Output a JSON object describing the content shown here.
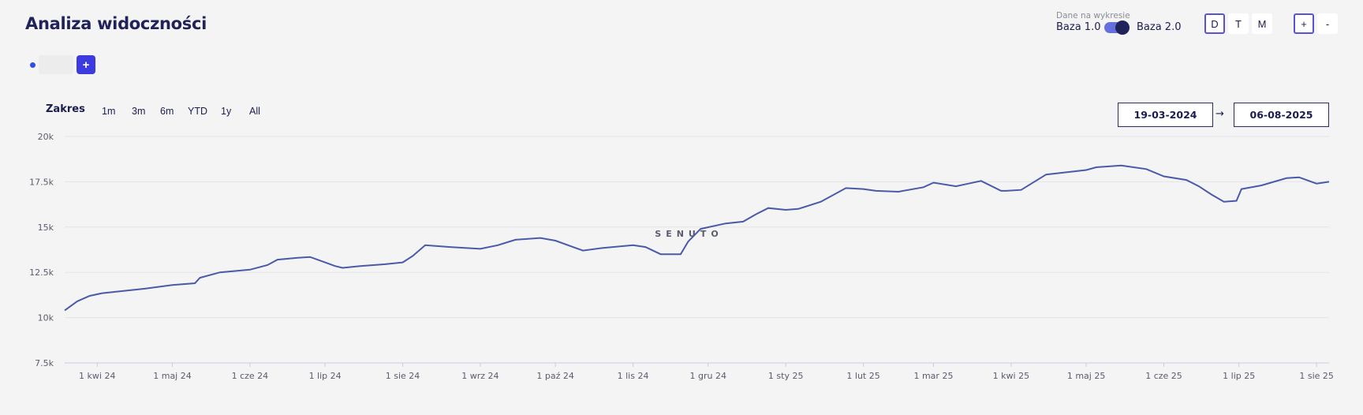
{
  "header": {
    "title": "Analiza widoczności"
  },
  "legend": {
    "dot_color": "#2f4ee6",
    "add_label": "+"
  },
  "database": {
    "caption": "Dane na wykresie",
    "left_label": "Baza 1.0",
    "right_label": "Baza 2.0",
    "toggle_on": true
  },
  "granularity": {
    "options": [
      "D",
      "T",
      "M"
    ],
    "active": "D"
  },
  "zoom": {
    "plus": "+",
    "minus": "-"
  },
  "range": {
    "label": "Zakres",
    "options": [
      "1m",
      "3m",
      "6m",
      "YTD",
      "1y",
      "All"
    ]
  },
  "dates": {
    "from": "19-03-2024",
    "arrow": "→",
    "to": "06-08-2025"
  },
  "watermark": "SENUTO",
  "chart_data": {
    "type": "line",
    "title": "",
    "xlabel": "",
    "ylabel": "",
    "ylim": [
      7500,
      20000
    ],
    "y_ticks": [
      7500,
      10000,
      12500,
      15000,
      17500,
      20000
    ],
    "y_tick_labels": [
      "7.5k",
      "10k",
      "12.5k",
      "15k",
      "17.5k",
      "20k"
    ],
    "x_range": [
      "2024-03-19",
      "2025-08-06"
    ],
    "x_ticks": [
      "2024-04-01",
      "2024-05-01",
      "2024-06-01",
      "2024-07-01",
      "2024-08-01",
      "2024-09-01",
      "2024-10-01",
      "2024-11-01",
      "2024-12-01",
      "2025-01-01",
      "2025-02-01",
      "2025-03-01",
      "2025-04-01",
      "2025-05-01",
      "2025-06-01",
      "2025-07-01",
      "2025-08-01"
    ],
    "x_tick_labels": [
      "1 kwi 24",
      "1 maj 24",
      "1 cze 24",
      "1 lip 24",
      "1 sie 24",
      "1 wrz 24",
      "1 paź 24",
      "1 lis 24",
      "1 gru 24",
      "1 sty 25",
      "1 lut 25",
      "1 mar 25",
      "1 kwi 25",
      "1 maj 25",
      "1 cze 25",
      "1 lip 25",
      "1 sie 25"
    ],
    "grid": true,
    "line_color": "#4a5aa8",
    "series": [
      {
        "x": [
          "2024-03-19",
          "2024-03-24",
          "2024-03-29",
          "2024-04-03",
          "2024-04-10",
          "2024-04-20",
          "2024-05-01",
          "2024-05-10",
          "2024-05-12",
          "2024-05-20",
          "2024-06-01",
          "2024-06-08",
          "2024-06-12",
          "2024-06-20",
          "2024-06-25",
          "2024-07-01",
          "2024-07-05",
          "2024-07-08",
          "2024-07-15",
          "2024-07-25",
          "2024-08-01",
          "2024-08-05",
          "2024-08-10",
          "2024-08-20",
          "2024-09-01",
          "2024-09-08",
          "2024-09-15",
          "2024-09-25",
          "2024-10-01",
          "2024-10-08",
          "2024-10-12",
          "2024-10-20",
          "2024-11-01",
          "2024-11-06",
          "2024-11-12",
          "2024-11-20",
          "2024-11-23",
          "2024-11-28",
          "2024-12-08",
          "2024-12-15",
          "2024-12-20",
          "2024-12-25",
          "2025-01-01",
          "2025-01-06",
          "2025-01-15",
          "2025-01-25",
          "2025-02-01",
          "2025-02-06",
          "2025-02-15",
          "2025-02-25",
          "2025-03-01",
          "2025-03-10",
          "2025-03-15",
          "2025-03-20",
          "2025-03-28",
          "2025-03-30",
          "2025-04-05",
          "2025-04-15",
          "2025-05-01",
          "2025-05-05",
          "2025-05-15",
          "2025-05-25",
          "2025-06-01",
          "2025-06-10",
          "2025-06-15",
          "2025-06-20",
          "2025-06-25",
          "2025-06-30",
          "2025-07-02",
          "2025-07-10",
          "2025-07-20",
          "2025-07-25",
          "2025-08-01",
          "2025-08-06"
        ],
        "y": [
          10400,
          10900,
          11200,
          11350,
          11450,
          11600,
          11800,
          11900,
          12200,
          12500,
          12650,
          12900,
          13200,
          13300,
          13350,
          13050,
          12850,
          12750,
          12850,
          12950,
          13050,
          13400,
          14000,
          13900,
          13800,
          14000,
          14300,
          14400,
          14250,
          13900,
          13700,
          13850,
          14000,
          13900,
          13500,
          13500,
          14200,
          14900,
          15200,
          15300,
          15700,
          16050,
          15950,
          16000,
          16400,
          17150,
          17100,
          17000,
          16950,
          17200,
          17450,
          17250,
          17400,
          17550,
          17000,
          17000,
          17050,
          17900,
          18150,
          18300,
          18400,
          18200,
          17800,
          17600,
          17250,
          16800,
          16400,
          16450,
          17100,
          17300,
          17700,
          17750,
          17400,
          17500
        ]
      }
    ]
  }
}
